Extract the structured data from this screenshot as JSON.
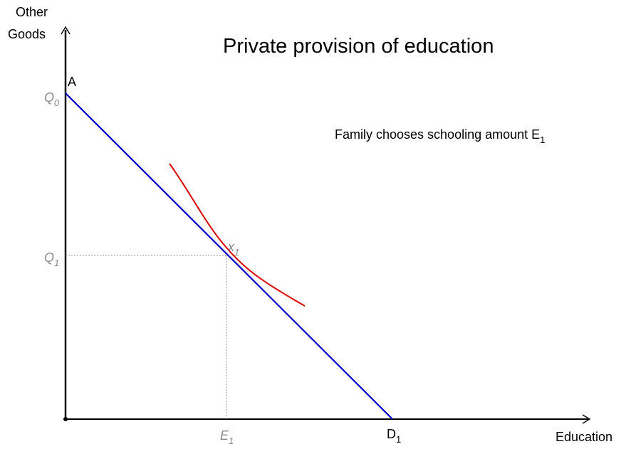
{
  "title": "Private provision of education",
  "annotation": {
    "text": "Family chooses schooling amount E",
    "subscript": "1"
  },
  "axes": {
    "y_label_line1": "Other",
    "y_label_line2": "Goods",
    "x_label": "Education"
  },
  "labels": {
    "point_a": "A",
    "q0_main": "Q",
    "q0_sub": "0",
    "q1_main": "Q",
    "q1_sub": "1",
    "x1_main": "x",
    "x1_sub": "1",
    "e1_main": "E",
    "e1_sub": "1",
    "d1_main": "D",
    "d1_sub": "1"
  },
  "colors": {
    "budget_line": "#0000cc",
    "indifference_curve": "#dd0000",
    "axis": "#000000",
    "guide_lines": "#999999",
    "muted_labels": "#8a8a8a"
  }
}
